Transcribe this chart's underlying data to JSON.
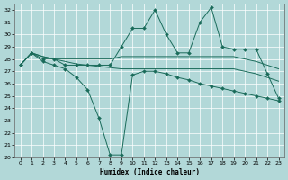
{
  "xlabel": "Humidex (Indice chaleur)",
  "background_color": "#b2d8d8",
  "grid_color": "#ffffff",
  "line_color": "#1a6b5a",
  "xlim": [
    -0.5,
    23.5
  ],
  "ylim": [
    20,
    32.5
  ],
  "yticks": [
    20,
    21,
    22,
    23,
    24,
    25,
    26,
    27,
    28,
    29,
    30,
    31,
    32
  ],
  "xticks": [
    0,
    1,
    2,
    3,
    4,
    5,
    6,
    7,
    8,
    9,
    10,
    11,
    12,
    13,
    14,
    15,
    16,
    17,
    18,
    19,
    20,
    21,
    22,
    23
  ],
  "volatile_y": [
    27.5,
    28.5,
    28.0,
    28.0,
    27.5,
    27.5,
    27.5,
    27.5,
    27.5,
    29.0,
    30.5,
    30.5,
    32.0,
    30.0,
    28.5,
    28.5,
    31.0,
    32.2,
    29.0,
    28.8,
    28.8,
    28.8,
    26.8,
    24.8
  ],
  "upper_y": [
    27.5,
    28.5,
    28.2,
    28.0,
    28.0,
    28.0,
    28.0,
    28.0,
    28.0,
    28.2,
    28.2,
    28.2,
    28.2,
    28.2,
    28.2,
    28.2,
    28.2,
    28.2,
    28.2,
    28.2,
    28.0,
    27.8,
    27.5,
    27.2
  ],
  "mid_y": [
    27.5,
    28.5,
    28.2,
    28.0,
    27.8,
    27.6,
    27.5,
    27.4,
    27.3,
    27.2,
    27.2,
    27.2,
    27.2,
    27.2,
    27.2,
    27.2,
    27.2,
    27.2,
    27.2,
    27.2,
    27.0,
    26.8,
    26.5,
    26.2
  ],
  "lower_y": [
    27.5,
    28.5,
    27.8,
    27.5,
    27.2,
    26.5,
    25.5,
    23.2,
    20.2,
    20.2,
    26.7,
    27.0,
    27.0,
    26.8,
    26.5,
    26.3,
    26.0,
    25.8,
    25.6,
    25.4,
    25.2,
    25.0,
    24.8,
    24.6
  ]
}
